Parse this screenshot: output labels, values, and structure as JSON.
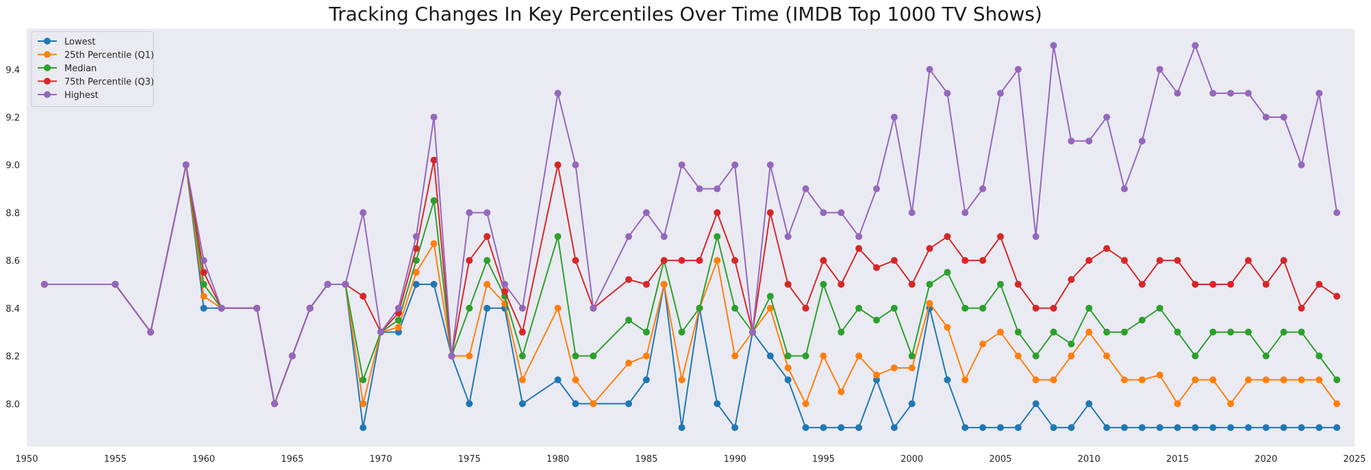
{
  "chart_data": {
    "type": "line",
    "title": "Tracking Changes In Key Percentiles Over Time (IMDB Top 1000 TV Shows)",
    "xlabel": "",
    "ylabel": "",
    "xlim": [
      1950,
      2025
    ],
    "ylim": [
      7.82,
      9.57
    ],
    "x_ticks": [
      1950,
      1955,
      1960,
      1965,
      1970,
      1975,
      1980,
      1985,
      1990,
      1995,
      2000,
      2005,
      2010,
      2015,
      2020,
      2025
    ],
    "y_ticks": [
      8.0,
      8.2,
      8.4,
      8.6,
      8.8,
      9.0,
      9.2,
      9.4
    ],
    "grid": false,
    "legend_position": "top-left",
    "background": "#eaeaf2",
    "x": [
      1951,
      1955,
      1957,
      1959,
      1960,
      1961,
      1963,
      1964,
      1965,
      1966,
      1967,
      1968,
      1969,
      1970,
      1971,
      1972,
      1973,
      1974,
      1975,
      1976,
      1977,
      1978,
      1980,
      1981,
      1982,
      1984,
      1985,
      1986,
      1987,
      1988,
      1989,
      1990,
      1991,
      1992,
      1993,
      1994,
      1995,
      1996,
      1997,
      1998,
      1999,
      2000,
      2001,
      2002,
      2003,
      2004,
      2005,
      2006,
      2007,
      2008,
      2009,
      2010,
      2011,
      2012,
      2013,
      2014,
      2015,
      2016,
      2017,
      2018,
      2019,
      2020,
      2021,
      2022,
      2023,
      2024
    ],
    "series": [
      {
        "name": "Lowest",
        "color": "#1f77b4",
        "values": [
          8.5,
          8.5,
          8.3,
          9.0,
          8.4,
          8.4,
          8.4,
          8.0,
          8.2,
          8.4,
          8.5,
          8.5,
          7.9,
          8.3,
          8.3,
          8.5,
          8.5,
          8.2,
          8.0,
          8.4,
          8.4,
          8.0,
          8.1,
          8.0,
          8.0,
          8.0,
          8.1,
          8.5,
          7.9,
          8.4,
          8.0,
          7.9,
          8.3,
          8.2,
          8.1,
          7.9,
          7.9,
          7.9,
          7.9,
          8.1,
          7.9,
          8.0,
          8.4,
          8.1,
          7.9,
          7.9,
          7.9,
          7.9,
          8.0,
          7.9,
          7.9,
          8.0,
          7.9,
          7.9,
          7.9,
          7.9,
          7.9,
          7.9,
          7.9,
          7.9,
          7.9,
          7.9,
          7.9,
          7.9,
          7.9,
          7.9
        ]
      },
      {
        "name": "25th Percentile (Q1)",
        "color": "#ff7f0e",
        "values": [
          8.5,
          8.5,
          8.3,
          9.0,
          8.45,
          8.4,
          8.4,
          8.0,
          8.2,
          8.4,
          8.5,
          8.5,
          8.0,
          8.3,
          8.32,
          8.55,
          8.67,
          8.2,
          8.2,
          8.5,
          8.42,
          8.1,
          8.4,
          8.1,
          8.0,
          8.17,
          8.2,
          8.5,
          8.1,
          8.4,
          8.6,
          8.2,
          8.3,
          8.4,
          8.15,
          8.0,
          8.2,
          8.05,
          8.2,
          8.12,
          8.15,
          8.15,
          8.42,
          8.32,
          8.1,
          8.25,
          8.3,
          8.2,
          8.1,
          8.1,
          8.2,
          8.3,
          8.2,
          8.1,
          8.1,
          8.12,
          8.0,
          8.1,
          8.1,
          8.0,
          8.1,
          8.1,
          8.1,
          8.1,
          8.1,
          8.0
        ]
      },
      {
        "name": "Median",
        "color": "#2ca02c",
        "values": [
          8.5,
          8.5,
          8.3,
          9.0,
          8.5,
          8.4,
          8.4,
          8.0,
          8.2,
          8.4,
          8.5,
          8.5,
          8.1,
          8.3,
          8.35,
          8.6,
          8.85,
          8.2,
          8.4,
          8.6,
          8.45,
          8.2,
          8.7,
          8.2,
          8.2,
          8.35,
          8.3,
          8.6,
          8.3,
          8.4,
          8.7,
          8.4,
          8.3,
          8.45,
          8.2,
          8.2,
          8.5,
          8.3,
          8.4,
          8.35,
          8.4,
          8.2,
          8.5,
          8.55,
          8.4,
          8.4,
          8.5,
          8.3,
          8.2,
          8.3,
          8.25,
          8.4,
          8.3,
          8.3,
          8.35,
          8.4,
          8.3,
          8.2,
          8.3,
          8.3,
          8.3,
          8.2,
          8.3,
          8.3,
          8.2,
          8.1
        ]
      },
      {
        "name": "75th Percentile (Q3)",
        "color": "#d62728",
        "values": [
          8.5,
          8.5,
          8.3,
          9.0,
          8.55,
          8.4,
          8.4,
          8.0,
          8.2,
          8.4,
          8.5,
          8.5,
          8.45,
          8.3,
          8.38,
          8.65,
          9.02,
          8.2,
          8.6,
          8.7,
          8.47,
          8.3,
          9.0,
          8.6,
          8.4,
          8.52,
          8.5,
          8.6,
          8.6,
          8.6,
          8.8,
          8.6,
          8.3,
          8.8,
          8.5,
          8.4,
          8.6,
          8.5,
          8.65,
          8.57,
          8.6,
          8.5,
          8.65,
          8.7,
          8.6,
          8.6,
          8.7,
          8.5,
          8.4,
          8.4,
          8.52,
          8.6,
          8.65,
          8.6,
          8.5,
          8.6,
          8.6,
          8.5,
          8.5,
          8.5,
          8.6,
          8.5,
          8.6,
          8.4,
          8.5,
          8.45
        ]
      },
      {
        "name": "Highest",
        "color": "#9467bd",
        "values": [
          8.5,
          8.5,
          8.3,
          9.0,
          8.6,
          8.4,
          8.4,
          8.0,
          8.2,
          8.4,
          8.5,
          8.5,
          8.8,
          8.3,
          8.4,
          8.7,
          9.2,
          8.2,
          8.8,
          8.8,
          8.5,
          8.4,
          9.3,
          9.0,
          8.4,
          8.7,
          8.8,
          8.7,
          9.0,
          8.9,
          8.9,
          9.0,
          8.3,
          9.0,
          8.7,
          8.9,
          8.8,
          8.8,
          8.7,
          8.9,
          9.2,
          8.8,
          9.4,
          9.3,
          8.8,
          8.9,
          9.3,
          9.4,
          8.7,
          9.5,
          9.1,
          9.1,
          9.2,
          8.9,
          9.1,
          9.4,
          9.3,
          9.5,
          9.3,
          9.3,
          9.3,
          9.2,
          9.2,
          9.0,
          9.3,
          8.8
        ]
      }
    ]
  }
}
